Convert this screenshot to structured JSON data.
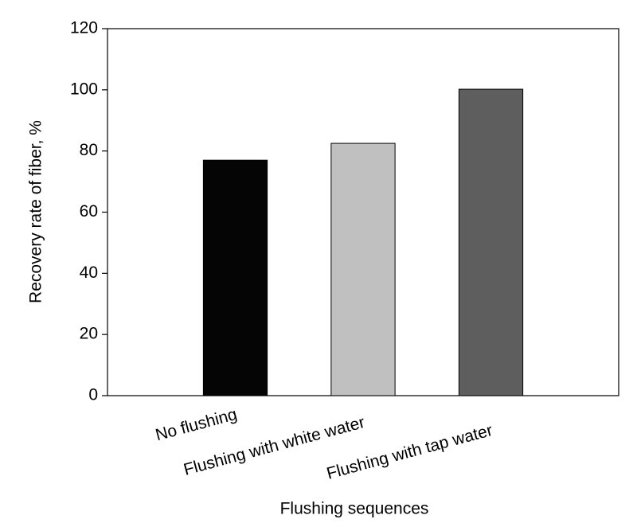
{
  "chart_data": {
    "type": "bar",
    "categories": [
      "No flushing",
      "Flushing with white water",
      "Flushing with tap water"
    ],
    "values": [
      77,
      82.5,
      100.2
    ],
    "colors": [
      "#050505",
      "#c0c0c0",
      "#5e5e5e"
    ],
    "x_label": "Flushing sequences",
    "y_label": "Recovery rate of fiber, %",
    "ylim": [
      0,
      120
    ],
    "yticks": [
      0,
      20,
      40,
      60,
      80,
      100,
      120
    ],
    "grid": false
  }
}
